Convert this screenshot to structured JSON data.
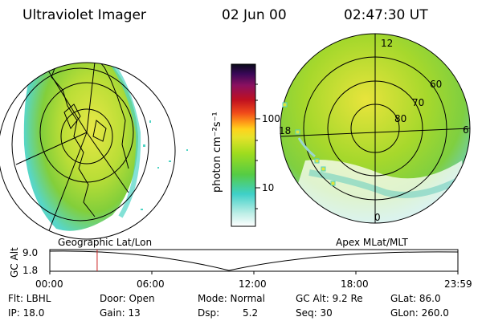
{
  "header": {
    "title": "Ultraviolet Imager",
    "date": "02 Jun 00",
    "time": "02:47:30 UT"
  },
  "left_panel": {
    "caption": "Geographic Lat/Lon"
  },
  "right_panel": {
    "caption": "Apex MLat/MLT",
    "mlt_labels": [
      "12",
      "18",
      "6",
      "0"
    ],
    "lat_labels": [
      "60",
      "70",
      "80"
    ]
  },
  "colorbar": {
    "unit_label": "photon cm⁻²s⁻¹",
    "tick_labels": [
      "100",
      "10"
    ]
  },
  "altitude_plot": {
    "ylabel": "GC Alt",
    "ytick_top": "9.0",
    "ytick_bottom": "1.8",
    "xticks": [
      "00:00",
      "06:00",
      "12:00",
      "18:00",
      "23:59"
    ],
    "marker_time_fraction": 0.116
  },
  "info": {
    "flt": "Flt: LBHL",
    "ip": "IP: 18.0",
    "door": "Door: Open",
    "gain": "Gain: 13",
    "mode": "Mode: Normal",
    "dsp_label": "Dsp:",
    "dsp_value": "5.2",
    "gc_alt": "GC Alt: 9.2 Re",
    "seq": "Seq: 30",
    "glat": "GLat:  86.0",
    "glon": "GLon: 260.0"
  },
  "colors": {
    "auroral_green": "#9bd62a",
    "auroral_yellow": "#e4e43a",
    "low_cyan": "#4fd4c4",
    "marker_red": "#cc2222"
  }
}
